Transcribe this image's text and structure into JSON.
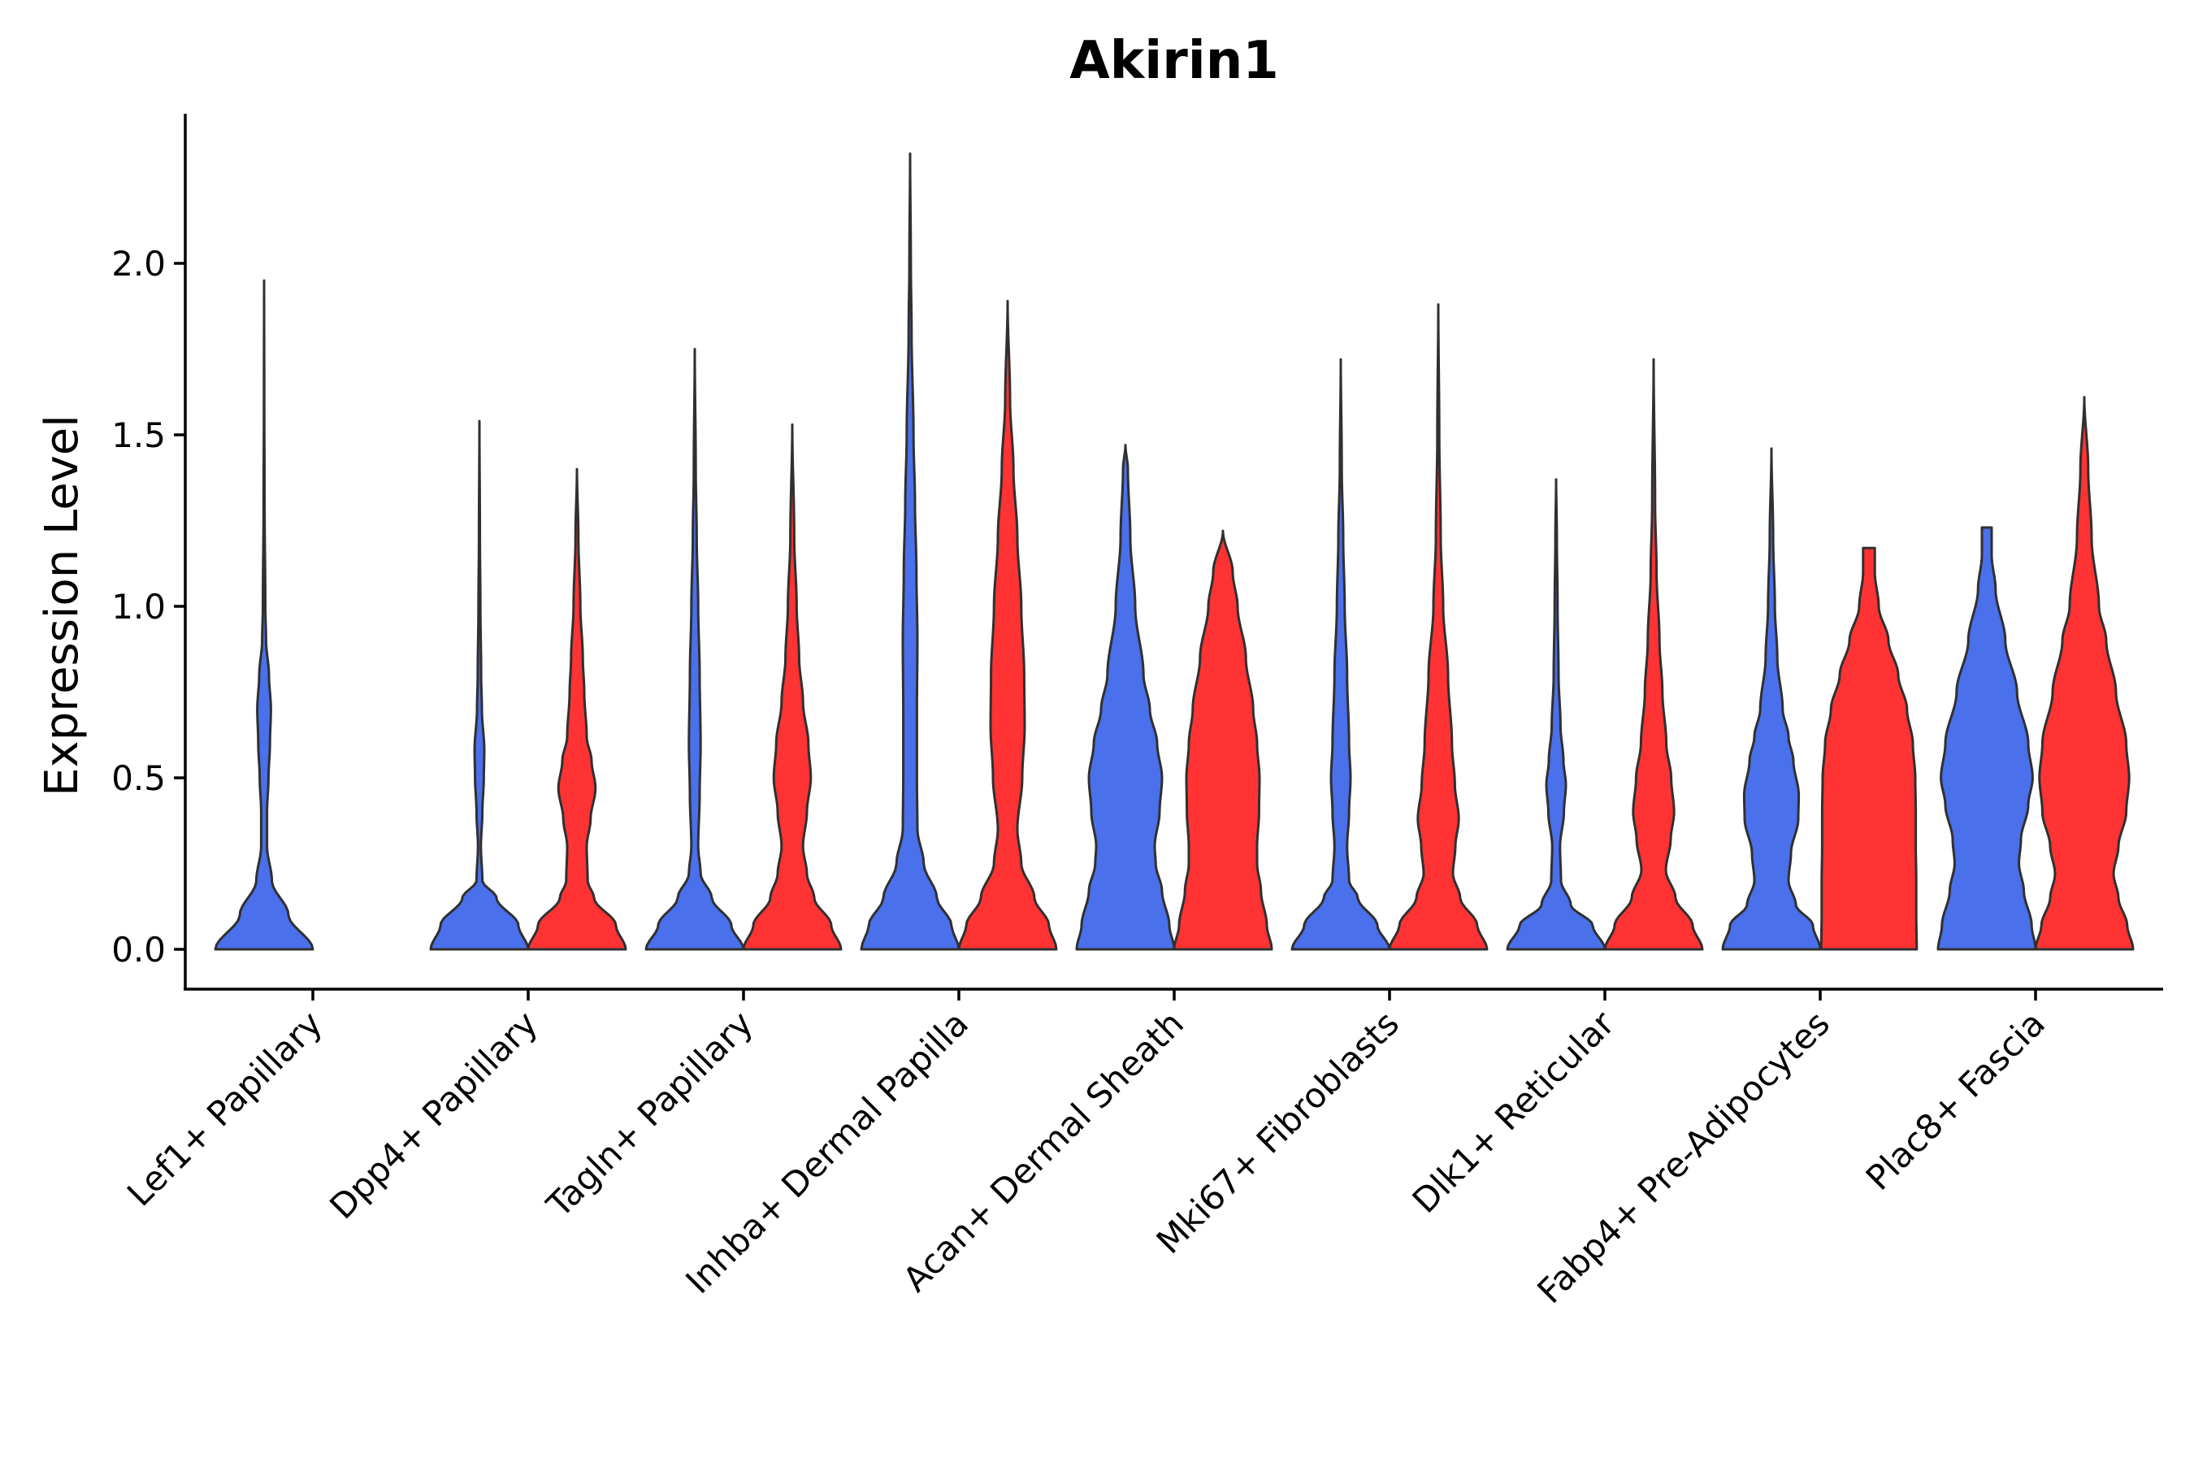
{
  "chart_data": {
    "type": "violin",
    "title": "Akirin1",
    "xlabel": "",
    "ylabel": "Expression Level",
    "ylim": [
      -0.12,
      2.45
    ],
    "yticks": [
      0.0,
      0.5,
      1.0,
      1.5,
      2.0
    ],
    "ytick_labels": [
      "0.0",
      "0.5",
      "1.0",
      "1.5",
      "2.0"
    ],
    "grid": false,
    "legend": "none",
    "colors": {
      "group_a": "#4A70EB",
      "group_b": "#FF3333",
      "outline": "#303030"
    },
    "categories": [
      "Lef1+ Papillary",
      "Dpp4+ Papillary",
      "Tagln+ Papillary",
      "Inhba+ Dermal Papilla",
      "Acan+ Dermal Sheath",
      "Mki67+ Fibroblasts",
      "Dlk1+ Reticular",
      "Fabp4+ Pre-Adipocytes",
      "Plac8+ Fascia"
    ],
    "violins": [
      {
        "category": "Lef1+ Papillary",
        "group": "blue",
        "max": 1.95,
        "profile": [
          [
            0,
            1.0
          ],
          [
            0.1,
            0.5
          ],
          [
            0.2,
            0.16
          ],
          [
            0.3,
            0.06
          ],
          [
            0.4,
            0.06
          ],
          [
            0.5,
            0.09
          ],
          [
            0.6,
            0.12
          ],
          [
            0.7,
            0.14
          ],
          [
            0.8,
            0.1
          ],
          [
            0.9,
            0.04
          ],
          [
            1.0,
            0.025
          ],
          [
            1.3,
            0.01
          ],
          [
            1.6,
            0.004
          ],
          [
            1.95,
            0.0
          ]
        ]
      },
      {
        "category": "Dpp4+ Papillary",
        "group": "blue",
        "max": 1.54,
        "profile": [
          [
            0,
            1.0
          ],
          [
            0.07,
            0.8
          ],
          [
            0.15,
            0.35
          ],
          [
            0.2,
            0.06
          ],
          [
            0.3,
            0.03
          ],
          [
            0.4,
            0.06
          ],
          [
            0.5,
            0.09
          ],
          [
            0.58,
            0.1
          ],
          [
            0.7,
            0.05
          ],
          [
            0.8,
            0.035
          ],
          [
            1.0,
            0.02
          ],
          [
            1.2,
            0.01
          ],
          [
            1.54,
            0.0
          ]
        ]
      },
      {
        "category": "Dpp4+ Papillary",
        "group": "red",
        "max": 1.4,
        "profile": [
          [
            0,
            1.0
          ],
          [
            0.07,
            0.8
          ],
          [
            0.15,
            0.35
          ],
          [
            0.2,
            0.22
          ],
          [
            0.3,
            0.2
          ],
          [
            0.38,
            0.28
          ],
          [
            0.47,
            0.38
          ],
          [
            0.55,
            0.3
          ],
          [
            0.62,
            0.2
          ],
          [
            0.75,
            0.15
          ],
          [
            0.85,
            0.12
          ],
          [
            1.0,
            0.07
          ],
          [
            1.2,
            0.03
          ],
          [
            1.4,
            0.0
          ]
        ]
      },
      {
        "category": "Tagln+ Papillary",
        "group": "blue",
        "max": 1.75,
        "profile": [
          [
            0,
            1.0
          ],
          [
            0.07,
            0.75
          ],
          [
            0.15,
            0.35
          ],
          [
            0.22,
            0.12
          ],
          [
            0.3,
            0.07
          ],
          [
            0.45,
            0.1
          ],
          [
            0.6,
            0.12
          ],
          [
            0.8,
            0.1
          ],
          [
            1.0,
            0.07
          ],
          [
            1.2,
            0.04
          ],
          [
            1.4,
            0.02
          ],
          [
            1.75,
            0.0
          ]
        ]
      },
      {
        "category": "Tagln+ Papillary",
        "group": "red",
        "max": 1.53,
        "profile": [
          [
            0,
            1.0
          ],
          [
            0.07,
            0.8
          ],
          [
            0.15,
            0.45
          ],
          [
            0.22,
            0.3
          ],
          [
            0.3,
            0.22
          ],
          [
            0.4,
            0.3
          ],
          [
            0.5,
            0.38
          ],
          [
            0.6,
            0.33
          ],
          [
            0.72,
            0.22
          ],
          [
            0.85,
            0.14
          ],
          [
            1.0,
            0.09
          ],
          [
            1.2,
            0.04
          ],
          [
            1.53,
            0.0
          ]
        ]
      },
      {
        "category": "Inhba+ Dermal Papilla",
        "group": "blue",
        "max": 2.32,
        "profile": [
          [
            0,
            1.0
          ],
          [
            0.07,
            0.85
          ],
          [
            0.15,
            0.55
          ],
          [
            0.25,
            0.28
          ],
          [
            0.35,
            0.15
          ],
          [
            0.5,
            0.14
          ],
          [
            0.7,
            0.14
          ],
          [
            0.9,
            0.15
          ],
          [
            1.1,
            0.13
          ],
          [
            1.3,
            0.1
          ],
          [
            1.5,
            0.07
          ],
          [
            1.8,
            0.03
          ],
          [
            2.0,
            0.015
          ],
          [
            2.32,
            0.0
          ]
        ]
      },
      {
        "category": "Inhba+ Dermal Papilla",
        "group": "red",
        "max": 1.89,
        "profile": [
          [
            0,
            1.0
          ],
          [
            0.07,
            0.85
          ],
          [
            0.15,
            0.55
          ],
          [
            0.25,
            0.28
          ],
          [
            0.35,
            0.2
          ],
          [
            0.5,
            0.3
          ],
          [
            0.65,
            0.35
          ],
          [
            0.8,
            0.34
          ],
          [
            1.0,
            0.28
          ],
          [
            1.2,
            0.2
          ],
          [
            1.4,
            0.12
          ],
          [
            1.6,
            0.05
          ],
          [
            1.89,
            0.0
          ]
        ]
      },
      {
        "category": "Acan+ Dermal Sheath",
        "group": "blue",
        "max": 1.47,
        "profile": [
          [
            0,
            1.0
          ],
          [
            0.07,
            0.9
          ],
          [
            0.17,
            0.75
          ],
          [
            0.25,
            0.62
          ],
          [
            0.3,
            0.6
          ],
          [
            0.4,
            0.7
          ],
          [
            0.5,
            0.75
          ],
          [
            0.6,
            0.65
          ],
          [
            0.7,
            0.5
          ],
          [
            0.8,
            0.37
          ],
          [
            1.0,
            0.2
          ],
          [
            1.2,
            0.1
          ],
          [
            1.4,
            0.05
          ],
          [
            1.47,
            0.0
          ]
        ]
      },
      {
        "category": "Acan+ Dermal Sheath",
        "group": "red",
        "max": 1.22,
        "profile": [
          [
            0,
            1.0
          ],
          [
            0.07,
            0.9
          ],
          [
            0.17,
            0.78
          ],
          [
            0.25,
            0.7
          ],
          [
            0.3,
            0.7
          ],
          [
            0.4,
            0.74
          ],
          [
            0.5,
            0.75
          ],
          [
            0.6,
            0.7
          ],
          [
            0.7,
            0.62
          ],
          [
            0.85,
            0.47
          ],
          [
            1.0,
            0.3
          ],
          [
            1.1,
            0.2
          ],
          [
            1.22,
            0.0
          ]
        ]
      },
      {
        "category": "Mki67+ Fibroblasts",
        "group": "blue",
        "max": 1.72,
        "profile": [
          [
            0,
            1.0
          ],
          [
            0.07,
            0.75
          ],
          [
            0.15,
            0.35
          ],
          [
            0.2,
            0.17
          ],
          [
            0.3,
            0.13
          ],
          [
            0.4,
            0.17
          ],
          [
            0.5,
            0.2
          ],
          [
            0.6,
            0.17
          ],
          [
            0.8,
            0.13
          ],
          [
            1.0,
            0.08
          ],
          [
            1.2,
            0.05
          ],
          [
            1.4,
            0.02
          ],
          [
            1.72,
            0.0
          ]
        ]
      },
      {
        "category": "Mki67+ Fibroblasts",
        "group": "red",
        "max": 1.88,
        "profile": [
          [
            0,
            1.0
          ],
          [
            0.07,
            0.8
          ],
          [
            0.15,
            0.45
          ],
          [
            0.22,
            0.3
          ],
          [
            0.3,
            0.35
          ],
          [
            0.38,
            0.42
          ],
          [
            0.48,
            0.34
          ],
          [
            0.6,
            0.28
          ],
          [
            0.8,
            0.2
          ],
          [
            1.0,
            0.1
          ],
          [
            1.2,
            0.05
          ],
          [
            1.5,
            0.02
          ],
          [
            1.88,
            0.0
          ]
        ]
      },
      {
        "category": "Dlk1+ Reticular",
        "group": "blue",
        "max": 1.37,
        "profile": [
          [
            0,
            1.0
          ],
          [
            0.07,
            0.75
          ],
          [
            0.13,
            0.3
          ],
          [
            0.2,
            0.1
          ],
          [
            0.3,
            0.08
          ],
          [
            0.4,
            0.16
          ],
          [
            0.48,
            0.2
          ],
          [
            0.55,
            0.15
          ],
          [
            0.65,
            0.09
          ],
          [
            0.8,
            0.05
          ],
          [
            1.0,
            0.03
          ],
          [
            1.2,
            0.015
          ],
          [
            1.37,
            0.0
          ]
        ]
      },
      {
        "category": "Dlk1+ Reticular",
        "group": "red",
        "max": 1.72,
        "profile": [
          [
            0,
            1.0
          ],
          [
            0.07,
            0.8
          ],
          [
            0.15,
            0.45
          ],
          [
            0.23,
            0.25
          ],
          [
            0.32,
            0.35
          ],
          [
            0.4,
            0.42
          ],
          [
            0.5,
            0.36
          ],
          [
            0.6,
            0.26
          ],
          [
            0.75,
            0.18
          ],
          [
            0.9,
            0.12
          ],
          [
            1.1,
            0.06
          ],
          [
            1.3,
            0.03
          ],
          [
            1.72,
            0.0
          ]
        ]
      },
      {
        "category": "Fabp4+ Pre-Adipocytes",
        "group": "blue",
        "max": 1.46,
        "profile": [
          [
            0,
            1.0
          ],
          [
            0.07,
            0.85
          ],
          [
            0.13,
            0.5
          ],
          [
            0.2,
            0.35
          ],
          [
            0.28,
            0.4
          ],
          [
            0.38,
            0.55
          ],
          [
            0.45,
            0.56
          ],
          [
            0.55,
            0.45
          ],
          [
            0.62,
            0.35
          ],
          [
            0.7,
            0.23
          ],
          [
            0.85,
            0.12
          ],
          [
            1.0,
            0.07
          ],
          [
            1.2,
            0.035
          ],
          [
            1.46,
            0.0
          ]
        ]
      },
      {
        "category": "Fabp4+ Pre-Adipocytes",
        "group": "red",
        "max": 1.17,
        "profile": [
          [
            0,
            0.98
          ],
          [
            0.1,
            0.97
          ],
          [
            0.2,
            0.97
          ],
          [
            0.3,
            0.96
          ],
          [
            0.4,
            0.96
          ],
          [
            0.5,
            0.95
          ],
          [
            0.6,
            0.9
          ],
          [
            0.7,
            0.78
          ],
          [
            0.8,
            0.6
          ],
          [
            0.9,
            0.4
          ],
          [
            1.0,
            0.2
          ],
          [
            1.1,
            0.12
          ],
          [
            1.17,
            0.12
          ]
        ]
      },
      {
        "category": "Plac8+ Fascia",
        "group": "blue",
        "max": 1.23,
        "profile": [
          [
            0,
            1.0
          ],
          [
            0.07,
            0.92
          ],
          [
            0.17,
            0.76
          ],
          [
            0.25,
            0.66
          ],
          [
            0.32,
            0.7
          ],
          [
            0.42,
            0.85
          ],
          [
            0.5,
            0.94
          ],
          [
            0.6,
            0.85
          ],
          [
            0.75,
            0.62
          ],
          [
            0.9,
            0.38
          ],
          [
            1.05,
            0.18
          ],
          [
            1.15,
            0.1
          ],
          [
            1.23,
            0.1
          ]
        ]
      },
      {
        "category": "Plac8+ Fascia",
        "group": "red",
        "max": 1.61,
        "profile": [
          [
            0,
            1.0
          ],
          [
            0.07,
            0.88
          ],
          [
            0.15,
            0.7
          ],
          [
            0.22,
            0.6
          ],
          [
            0.3,
            0.7
          ],
          [
            0.4,
            0.86
          ],
          [
            0.5,
            0.92
          ],
          [
            0.6,
            0.86
          ],
          [
            0.75,
            0.65
          ],
          [
            0.9,
            0.45
          ],
          [
            1.0,
            0.3
          ],
          [
            1.2,
            0.15
          ],
          [
            1.4,
            0.08
          ],
          [
            1.61,
            0.0
          ]
        ]
      }
    ]
  }
}
